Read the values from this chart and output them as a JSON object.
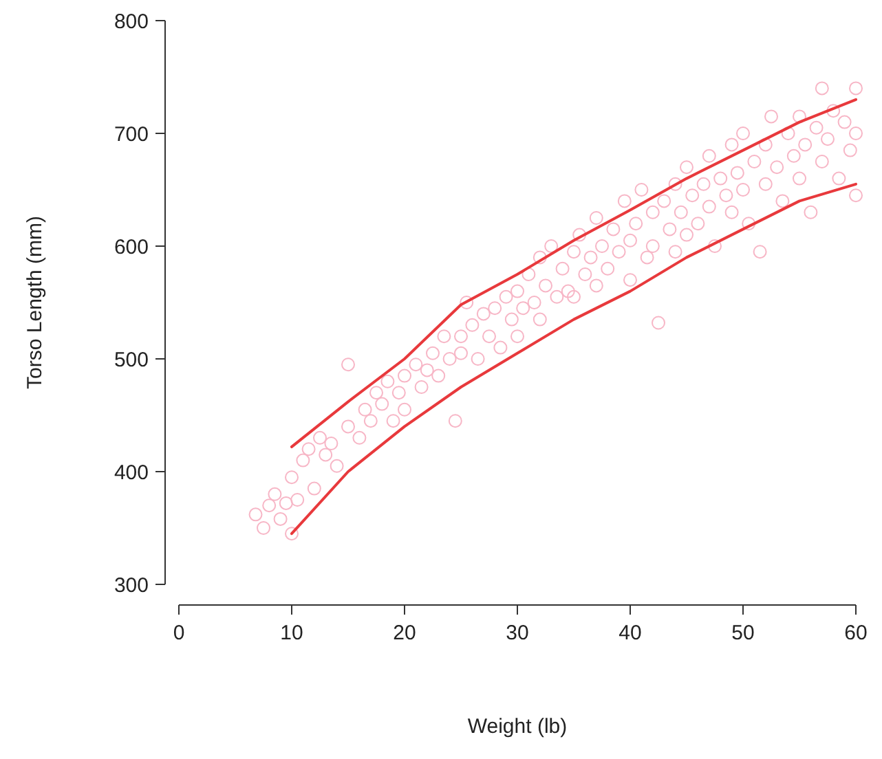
{
  "chart_data": {
    "type": "scatter",
    "xlabel": "Weight (lb)",
    "ylabel": "Torso Length (mm)",
    "xlim": [
      0,
      60
    ],
    "ylim": [
      300,
      800
    ],
    "xticks": [
      0,
      10,
      20,
      30,
      40,
      50,
      60
    ],
    "yticks": [
      300,
      400,
      500,
      600,
      700,
      800
    ],
    "grid": false,
    "series": [
      {
        "marker": "circle",
        "color": "#f7b6c6",
        "x": [
          6.8,
          7.5,
          8,
          8.5,
          9,
          9.5,
          10,
          10,
          10.5,
          11,
          11.5,
          12,
          12.5,
          13,
          13.5,
          14,
          15,
          15,
          16,
          16.5,
          17,
          17.5,
          18,
          18.5,
          19,
          19.5,
          20,
          20,
          21,
          21.5,
          22,
          22.5,
          23,
          23.5,
          24,
          24.5,
          25,
          25,
          25.5,
          26,
          26.5,
          27,
          27.5,
          28,
          28.5,
          29,
          29.5,
          30,
          30,
          30.5,
          31,
          31.5,
          32,
          32,
          32.5,
          33,
          33.5,
          34,
          34.5,
          35,
          35,
          35.5,
          36,
          36.5,
          37,
          37,
          37.5,
          38,
          38.5,
          39,
          39.5,
          40,
          40,
          40.5,
          41,
          41.5,
          42,
          42,
          42.5,
          43,
          43.5,
          44,
          44,
          44.5,
          45,
          45,
          45.5,
          46,
          46.5,
          47,
          47,
          47.5,
          48,
          48.5,
          49,
          49,
          49.5,
          50,
          50,
          50.5,
          51,
          51.5,
          52,
          52,
          52.5,
          53,
          53.5,
          54,
          54.5,
          55,
          55,
          55.5,
          56,
          56.5,
          57,
          57,
          57.5,
          58,
          58.5,
          59,
          59.5,
          60,
          60,
          60
        ],
        "values": [
          362,
          350,
          370,
          380,
          358,
          372,
          395,
          345,
          375,
          410,
          420,
          385,
          430,
          415,
          425,
          405,
          495,
          440,
          430,
          455,
          445,
          470,
          460,
          480,
          445,
          470,
          485,
          455,
          495,
          475,
          490,
          505,
          485,
          520,
          500,
          445,
          520,
          505,
          550,
          530,
          500,
          540,
          520,
          545,
          510,
          555,
          535,
          560,
          520,
          545,
          575,
          550,
          590,
          535,
          565,
          600,
          555,
          580,
          560,
          595,
          555,
          610,
          575,
          590,
          625,
          565,
          600,
          580,
          615,
          595,
          640,
          605,
          570,
          620,
          650,
          590,
          630,
          600,
          532,
          640,
          615,
          655,
          595,
          630,
          670,
          610,
          645,
          620,
          655,
          680,
          635,
          600,
          660,
          645,
          690,
          630,
          665,
          650,
          700,
          620,
          675,
          595,
          690,
          655,
          715,
          670,
          640,
          700,
          680,
          660,
          715,
          690,
          630,
          705,
          740,
          675,
          695,
          720,
          660,
          710,
          685,
          700,
          645,
          740
        ]
      },
      {
        "type": "line",
        "color": "#e8393c",
        "line_style": "solid",
        "x": [
          10,
          15,
          20,
          25,
          30,
          35,
          40,
          45,
          50,
          55,
          60
        ],
        "values": [
          422,
          462,
          500,
          548,
          575,
          605,
          632,
          660,
          685,
          710,
          730
        ]
      },
      {
        "type": "line",
        "color": "#e8393c",
        "line_style": "solid",
        "x": [
          10,
          15,
          20,
          25,
          30,
          35,
          40,
          45,
          50,
          55,
          60
        ],
        "values": [
          345,
          400,
          440,
          475,
          505,
          535,
          560,
          590,
          615,
          640,
          655
        ]
      }
    ]
  }
}
